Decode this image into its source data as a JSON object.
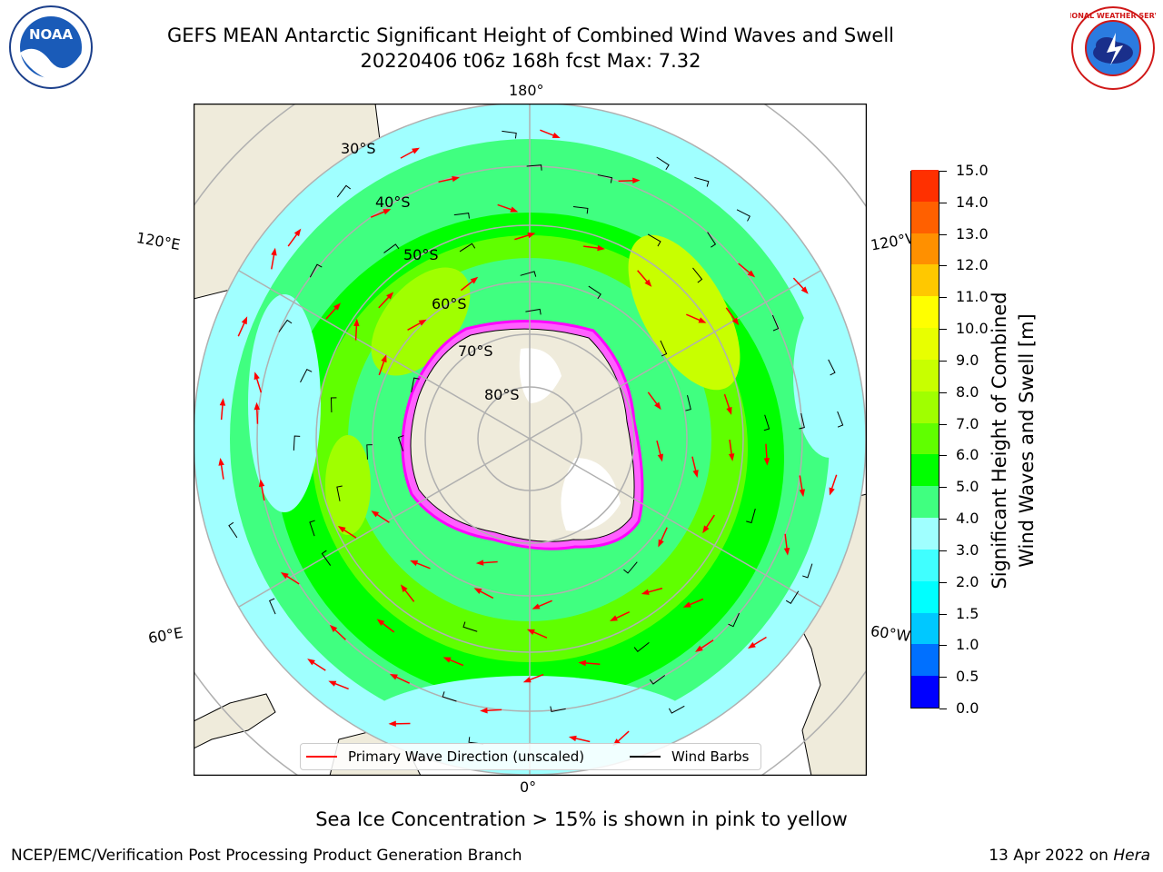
{
  "title": {
    "line1": "GEFS MEAN Antarctic Significant Height of Combined Wind Waves and Swell",
    "line2": "20220406 t06z 168h fcst   Max: 7.32"
  },
  "logos": {
    "left_text": "NOAA",
    "right_text": "NATIONAL WEATHER SERVICE"
  },
  "map": {
    "longitude_labels": {
      "top": "180°",
      "upper_left": "120°E",
      "upper_right": "120°W",
      "lower_left": "60°E",
      "lower_right": "60°W",
      "bottom": "0°"
    },
    "latitude_labels": [
      "30°S",
      "40°S",
      "50°S",
      "60°S",
      "70°S",
      "80°S"
    ],
    "legend": {
      "wave_direction": "Primary Wave Direction (unscaled)",
      "wind_barbs": "Wind Barbs"
    }
  },
  "colorbar": {
    "label_line1": "Significant Height of Combined",
    "label_line2": "Wind Waves and Swell [m]",
    "ticks": [
      "0.0",
      "0.5",
      "1.0",
      "1.5",
      "2.0",
      "3.0",
      "4.0",
      "5.0",
      "6.0",
      "7.0",
      "8.0",
      "9.0",
      "10.0",
      "11.0",
      "12.0",
      "13.0",
      "14.0",
      "15.0"
    ],
    "colors": [
      "#0000ff",
      "#0070ff",
      "#00c8ff",
      "#00ffff",
      "#40ffff",
      "#a0ffff",
      "#40ff80",
      "#00ff00",
      "#60ff00",
      "#a0ff00",
      "#c8ff00",
      "#e8ff00",
      "#ffff00",
      "#ffc800",
      "#ff9000",
      "#ff6000",
      "#ff3000",
      "#ff0000"
    ]
  },
  "note": "Sea Ice Concentration > 15% is shown in pink to yellow",
  "footer": {
    "left": "NCEP/EMC/Verification Post Processing Product Generation Branch",
    "right_prefix": "13 Apr 2022 on ",
    "right_italic": "Hera"
  }
}
